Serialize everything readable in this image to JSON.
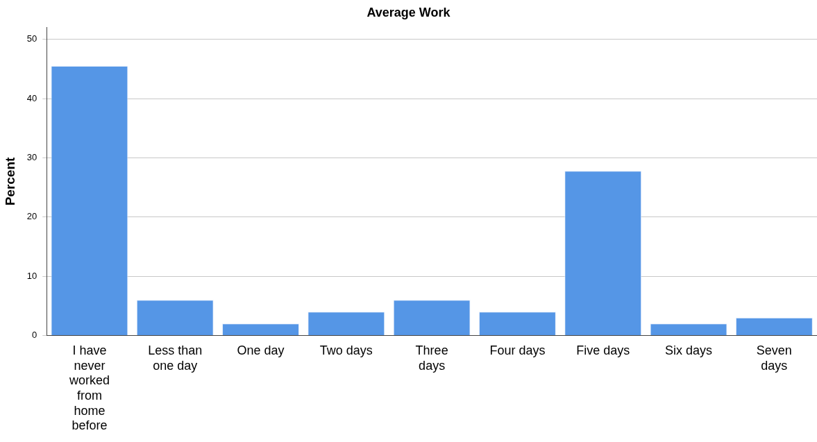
{
  "chart_data": {
    "type": "bar",
    "title": "Average Work",
    "ylabel": "Percent",
    "categories": [
      "I have never worked from home before",
      "Less than one day",
      "One day",
      "Two days",
      "Three days",
      "Four days",
      "Five days",
      "Six days",
      "Seven days"
    ],
    "values": [
      45.5,
      6.0,
      2.0,
      4.0,
      6.0,
      4.0,
      27.8,
      2.0,
      3.0
    ],
    "color": "#5596e6",
    "ylim": [
      0,
      52
    ],
    "yticks": [
      0,
      10,
      20,
      30,
      40,
      50
    ],
    "grid": "y",
    "legend": false
  }
}
